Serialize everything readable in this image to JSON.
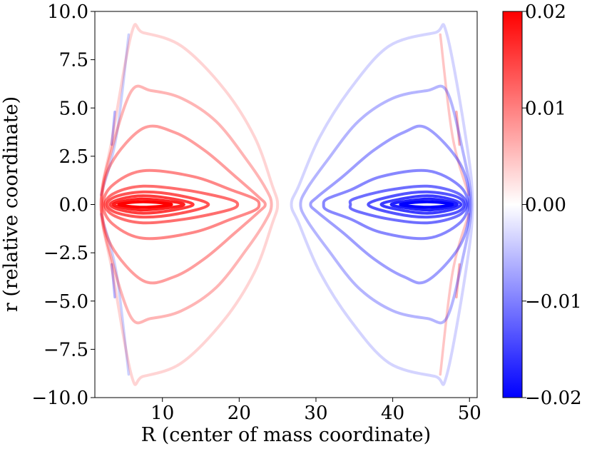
{
  "chart_data": {
    "type": "contour",
    "title": "",
    "xlabel": "R (center of mass coordinate)",
    "ylabel": "r (relative coordinate)",
    "xlim": [
      1.2,
      51
    ],
    "ylim": [
      -10,
      10
    ],
    "x_ticks": [
      10,
      20,
      30,
      40,
      50
    ],
    "x_tick_labels": [
      "10",
      "20",
      "30",
      "40",
      "50"
    ],
    "y_ticks": [
      10,
      7.5,
      5,
      2.5,
      0,
      -2.5,
      -5,
      -7.5,
      -10
    ],
    "y_tick_labels": [
      "10.0",
      "7.5",
      "5.0",
      "2.5",
      "0.0",
      "−2.5",
      "−5.0",
      "−7.5",
      "−10.0"
    ],
    "colorbar": {
      "colormap": "bwr",
      "range": [
        -0.02,
        0.02
      ],
      "ticks": [
        0.02,
        0.01,
        0.0,
        -0.01,
        -0.02
      ],
      "tick_labels": [
        "0.02",
        "0.01",
        "0.00",
        "−0.01",
        "−0.02"
      ]
    },
    "lobes": [
      {
        "name": "positive-lobe",
        "sign": "positive",
        "color": "#ff0000",
        "contours": [
          {
            "level": 0.02,
            "alpha": 1.0,
            "points": [
              [
                4.3,
                0
              ],
              [
                7.5,
                0.14
              ],
              [
                11.2,
                0
              ],
              [
                7.5,
                -0.14
              ]
            ]
          },
          {
            "level": 0.0175,
            "alpha": 0.88,
            "points": [
              [
                3.6,
                0
              ],
              [
                7.0,
                0.28
              ],
              [
                11.0,
                0.16
              ],
              [
                12.8,
                0
              ],
              [
                11.0,
                -0.16
              ],
              [
                7.0,
                -0.28
              ]
            ]
          },
          {
            "level": 0.015,
            "alpha": 0.77,
            "points": [
              [
                3.2,
                0
              ],
              [
                4.5,
                0.28
              ],
              [
                7.5,
                0.45
              ],
              [
                11.5,
                0.28
              ],
              [
                14.0,
                0
              ],
              [
                11.5,
                -0.28
              ],
              [
                7.5,
                -0.45
              ],
              [
                4.5,
                -0.28
              ]
            ]
          },
          {
            "level": 0.0125,
            "alpha": 0.67,
            "points": [
              [
                2.8,
                0
              ],
              [
                4.0,
                0.42
              ],
              [
                7.5,
                0.65
              ],
              [
                12.0,
                0.48
              ],
              [
                16.0,
                0
              ],
              [
                12.0,
                -0.48
              ],
              [
                7.5,
                -0.65
              ],
              [
                4.0,
                -0.42
              ]
            ]
          },
          {
            "level": 0.01,
            "alpha": 0.57,
            "points": [
              [
                2.5,
                0
              ],
              [
                3.8,
                0.6
              ],
              [
                7.5,
                0.95
              ],
              [
                13.0,
                0.75
              ],
              [
                18.5,
                0.3
              ],
              [
                19.8,
                0
              ],
              [
                18.5,
                -0.3
              ],
              [
                13.0,
                -0.75
              ],
              [
                7.5,
                -0.95
              ],
              [
                3.8,
                -0.6
              ]
            ]
          },
          {
            "level": 0.0075,
            "alpha": 0.47,
            "points": [
              [
                2.3,
                0
              ],
              [
                3.5,
                1.0
              ],
              [
                7.5,
                1.75
              ],
              [
                14.0,
                1.45
              ],
              [
                19.0,
                0.75
              ],
              [
                22.0,
                0.3
              ],
              [
                22.6,
                0
              ],
              [
                22.0,
                -0.3
              ],
              [
                19.0,
                -0.75
              ],
              [
                14.0,
                -1.45
              ],
              [
                7.5,
                -1.75
              ],
              [
                3.5,
                -1.0
              ]
            ]
          },
          {
            "level": 0.005,
            "alpha": 0.38,
            "points": [
              [
                2.1,
                0
              ],
              [
                3.3,
                2.1
              ],
              [
                7.5,
                3.95
              ],
              [
                11.5,
                3.75
              ],
              [
                15.5,
                2.8
              ],
              [
                19.5,
                1.45
              ],
              [
                22.5,
                0.4
              ],
              [
                23.4,
                0
              ],
              [
                22.5,
                -0.4
              ],
              [
                19.5,
                -1.45
              ],
              [
                15.5,
                -2.8
              ],
              [
                11.5,
                -3.75
              ],
              [
                7.5,
                -3.95
              ],
              [
                3.3,
                -2.1
              ]
            ]
          },
          {
            "level": 0.0025,
            "alpha": 0.29,
            "points": [
              [
                2.0,
                0
              ],
              [
                3.5,
                3.0
              ],
              [
                6.0,
                5.9
              ],
              [
                8.5,
                5.9
              ],
              [
                12.5,
                5.5
              ],
              [
                17.0,
                4.3
              ],
              [
                21.0,
                2.3
              ],
              [
                23.5,
                0.8
              ],
              [
                24.2,
                0
              ],
              [
                23.5,
                -0.8
              ],
              [
                21.0,
                -2.3
              ],
              [
                17.0,
                -4.3
              ],
              [
                12.5,
                -5.5
              ],
              [
                8.5,
                -5.9
              ],
              [
                6.0,
                -5.9
              ],
              [
                3.5,
                -3.0
              ]
            ]
          },
          {
            "level": 0.0008,
            "alpha": 0.17,
            "points": [
              [
                2.0,
                0
              ],
              [
                3.5,
                3.5
              ],
              [
                6.0,
                8.9
              ],
              [
                7.5,
                8.9
              ],
              [
                12.5,
                8.2
              ],
              [
                18.0,
                6.0
              ],
              [
                22.0,
                3.5
              ],
              [
                24.3,
                1.0
              ],
              [
                25.0,
                0
              ],
              [
                24.3,
                -1.0
              ],
              [
                22.0,
                -3.5
              ],
              [
                18.0,
                -6.0
              ],
              [
                12.5,
                -8.2
              ],
              [
                7.5,
                -8.9
              ],
              [
                6.0,
                -8.9
              ],
              [
                3.5,
                -3.5
              ]
            ]
          }
        ]
      },
      {
        "name": "negative-lobe",
        "sign": "negative",
        "color": "#0000ff",
        "contours": [
          {
            "level": -0.02,
            "alpha": 1.0,
            "points": [
              [
                41.0,
                0
              ],
              [
                44.5,
                0.14
              ],
              [
                47.8,
                0
              ],
              [
                44.5,
                -0.14
              ]
            ]
          },
          {
            "level": -0.0175,
            "alpha": 0.88,
            "points": [
              [
                39.8,
                0
              ],
              [
                41.5,
                0.16
              ],
              [
                45.0,
                0.28
              ],
              [
                48.4,
                0
              ],
              [
                45.0,
                -0.28
              ],
              [
                41.5,
                -0.16
              ]
            ]
          },
          {
            "level": -0.015,
            "alpha": 0.77,
            "points": [
              [
                38.5,
                0
              ],
              [
                41.0,
                0.28
              ],
              [
                44.5,
                0.45
              ],
              [
                47.5,
                0.28
              ],
              [
                48.9,
                0
              ],
              [
                47.5,
                -0.28
              ],
              [
                44.5,
                -0.45
              ],
              [
                41.0,
                -0.28
              ]
            ]
          },
          {
            "level": -0.0125,
            "alpha": 0.67,
            "points": [
              [
                36.8,
                0
              ],
              [
                40.5,
                0.48
              ],
              [
                44.5,
                0.65
              ],
              [
                48.2,
                0.42
              ],
              [
                49.3,
                0
              ],
              [
                48.2,
                -0.42
              ],
              [
                44.5,
                -0.65
              ],
              [
                40.5,
                -0.48
              ]
            ]
          },
          {
            "level": -0.01,
            "alpha": 0.57,
            "points": [
              [
                34.5,
                0
              ],
              [
                35.0,
                0.3
              ],
              [
                39.5,
                0.75
              ],
              [
                44.5,
                0.95
              ],
              [
                48.4,
                0.6
              ],
              [
                49.6,
                0
              ],
              [
                48.4,
                -0.6
              ],
              [
                44.5,
                -0.95
              ],
              [
                39.5,
                -0.75
              ],
              [
                35.0,
                -0.3
              ]
            ]
          },
          {
            "level": -0.0075,
            "alpha": 0.47,
            "points": [
              [
                31.0,
                0
              ],
              [
                31.5,
                0.3
              ],
              [
                34.5,
                0.75
              ],
              [
                38.5,
                1.45
              ],
              [
                44.5,
                1.75
              ],
              [
                48.6,
                1.0
              ],
              [
                49.8,
                0
              ],
              [
                48.6,
                -1.0
              ],
              [
                44.5,
                -1.75
              ],
              [
                38.5,
                -1.45
              ],
              [
                34.5,
                -0.75
              ],
              [
                31.5,
                -0.3
              ]
            ]
          },
          {
            "level": -0.005,
            "alpha": 0.38,
            "points": [
              [
                29.3,
                0
              ],
              [
                30.2,
                0.4
              ],
              [
                33.5,
                1.45
              ],
              [
                37.5,
                2.8
              ],
              [
                41.5,
                3.75
              ],
              [
                44.5,
                3.95
              ],
              [
                48.8,
                2.1
              ],
              [
                50.0,
                0
              ],
              [
                48.8,
                -2.1
              ],
              [
                44.5,
                -3.95
              ],
              [
                41.5,
                -3.75
              ],
              [
                37.5,
                -2.8
              ],
              [
                33.5,
                -1.45
              ],
              [
                30.2,
                -0.4
              ]
            ]
          },
          {
            "level": -0.0025,
            "alpha": 0.29,
            "points": [
              [
                28.0,
                0
              ],
              [
                28.8,
                0.8
              ],
              [
                31.5,
                2.3
              ],
              [
                35.5,
                4.3
              ],
              [
                40.0,
                5.5
              ],
              [
                44.5,
                5.9
              ],
              [
                47.0,
                5.9
              ],
              [
                49.0,
                3.0
              ],
              [
                50.2,
                0
              ],
              [
                49.0,
                -3.0
              ],
              [
                47.0,
                -5.9
              ],
              [
                44.5,
                -5.9
              ],
              [
                40.0,
                -5.5
              ],
              [
                35.5,
                -4.3
              ],
              [
                31.5,
                -2.3
              ],
              [
                28.8,
                -0.8
              ]
            ]
          },
          {
            "level": -0.0008,
            "alpha": 0.17,
            "points": [
              [
                26.8,
                0
              ],
              [
                27.8,
                1.0
              ],
              [
                30.5,
                3.5
              ],
              [
                34.5,
                6.0
              ],
              [
                39.5,
                8.2
              ],
              [
                45.5,
                8.9
              ],
              [
                47.0,
                8.9
              ],
              [
                49.5,
                3.5
              ],
              [
                50.4,
                0
              ],
              [
                49.5,
                -3.5
              ],
              [
                47.0,
                -8.9
              ],
              [
                45.5,
                -8.9
              ],
              [
                39.5,
                -8.2
              ],
              [
                34.5,
                -6.0
              ],
              [
                30.5,
                -3.5
              ],
              [
                27.8,
                -1.0
              ]
            ]
          }
        ]
      }
    ],
    "edge_fragments": [
      {
        "name": "edge-fragment-left-top",
        "color": "#6b7bff",
        "alpha": 0.35,
        "points": [
          [
            5.6,
            8.8
          ],
          [
            4.0,
            3.5
          ],
          [
            2.0,
            0.5
          ]
        ]
      },
      {
        "name": "edge-fragment-left-bottom",
        "color": "#6b7bff",
        "alpha": 0.35,
        "points": [
          [
            5.6,
            -8.8
          ],
          [
            4.0,
            -3.5
          ],
          [
            2.0,
            -0.5
          ]
        ]
      },
      {
        "name": "edge-fragment-left-top-dash",
        "color": "#0000ff",
        "alpha": 0.3,
        "points": [
          [
            3.8,
            4.8
          ],
          [
            3.4,
            3.1
          ]
        ]
      },
      {
        "name": "edge-fragment-left-bottom-dash",
        "color": "#0000ff",
        "alpha": 0.3,
        "points": [
          [
            3.8,
            -4.8
          ],
          [
            3.4,
            -3.1
          ]
        ]
      },
      {
        "name": "edge-fragment-right-top",
        "color": "#ff5a5a",
        "alpha": 0.35,
        "points": [
          [
            46.2,
            8.8
          ],
          [
            47.8,
            3.5
          ],
          [
            49.9,
            0.5
          ]
        ]
      },
      {
        "name": "edge-fragment-right-bottom",
        "color": "#ff5a5a",
        "alpha": 0.35,
        "points": [
          [
            46.2,
            -8.8
          ],
          [
            47.8,
            -3.5
          ],
          [
            49.9,
            -0.5
          ]
        ]
      },
      {
        "name": "edge-fragment-right-top-dash",
        "color": "#ff0000",
        "alpha": 0.3,
        "points": [
          [
            48.3,
            4.8
          ],
          [
            48.7,
            3.1
          ]
        ]
      },
      {
        "name": "edge-fragment-right-bottom-dash",
        "color": "#ff0000",
        "alpha": 0.3,
        "points": [
          [
            48.3,
            -4.8
          ],
          [
            48.7,
            -3.1
          ]
        ]
      }
    ]
  }
}
